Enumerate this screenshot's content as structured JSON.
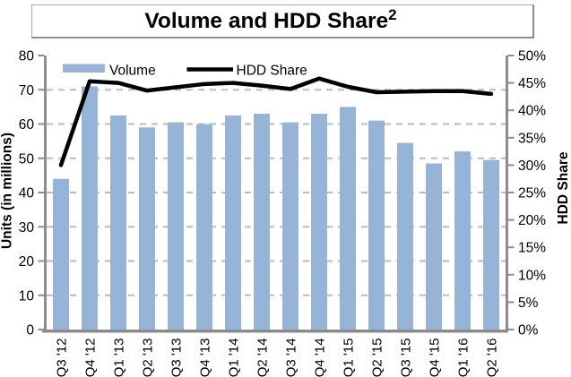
{
  "title": {
    "text": "Volume and HDD Share",
    "superscript": "2"
  },
  "chart_data": {
    "type": "combo-bar-line",
    "categories": [
      "Q3 '12",
      "Q4 '12",
      "Q1 '13",
      "Q2 '13",
      "Q3 '13",
      "Q4 '13",
      "Q1 '14",
      "Q2 '14",
      "Q3 '14",
      "Q4 '14",
      "Q1 '15",
      "Q2 '15",
      "Q3 '15",
      "Q4 '15",
      "Q1 '16",
      "Q2 '16"
    ],
    "series": [
      {
        "name": "Volume",
        "type": "bar",
        "axis": "left",
        "color": "#97B3D7",
        "values": [
          44,
          71,
          62.5,
          59,
          60.5,
          60,
          62.5,
          63,
          60.5,
          63,
          65,
          61,
          54.5,
          48.5,
          52,
          49.5
        ]
      },
      {
        "name": "HDD Share",
        "type": "line",
        "axis": "right",
        "color": "#000000",
        "values": [
          30,
          45.3,
          45,
          43.6,
          44.2,
          44.8,
          45,
          44.5,
          43.9,
          45.8,
          44.3,
          43.3,
          43.4,
          43.5,
          43.5,
          43
        ]
      }
    ],
    "left_axis": {
      "title": "Units (in millions)",
      "min": 0,
      "max": 80,
      "step": 10,
      "tick_labels": [
        "0",
        "10",
        "20",
        "30",
        "40",
        "50",
        "60",
        "70",
        "80"
      ]
    },
    "right_axis": {
      "title": "HDD Share",
      "min": 0,
      "max": 50,
      "step": 5,
      "tick_labels": [
        "0%",
        "5%",
        "10%",
        "15%",
        "20%",
        "25%",
        "30%",
        "35%",
        "40%",
        "45%",
        "50%"
      ]
    },
    "grid": {
      "style": "dashed-horizontal",
      "color": "#BBBBBB"
    },
    "legend": {
      "position": "top-inside",
      "items": [
        "Volume",
        "HDD Share"
      ]
    },
    "axis_color": "#8C8C8C"
  }
}
